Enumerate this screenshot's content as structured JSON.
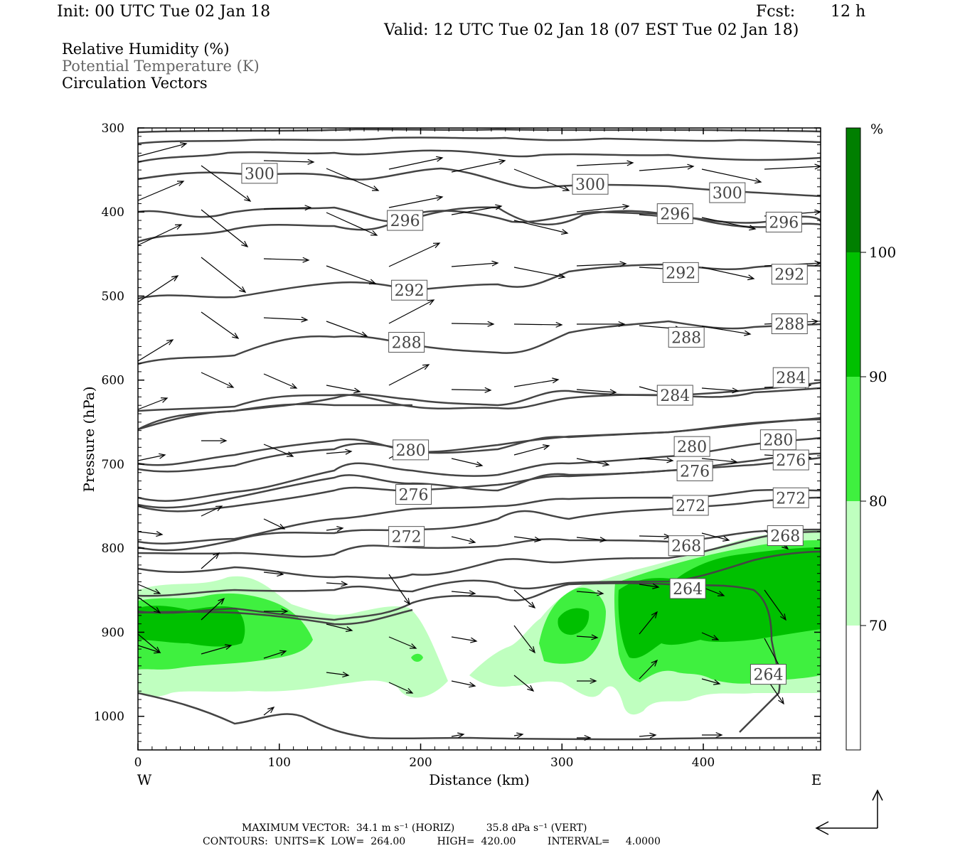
{
  "header": {
    "init": "Init: 00 UTC Tue 02 Jan 18",
    "fcst_label": "Fcst:",
    "fcst_value": "12 h",
    "valid": "Valid: 12 UTC Tue 02 Jan 18 (07 EST Tue 02 Jan 18)"
  },
  "fields": [
    {
      "text": "Relative Humidity (%)",
      "color": "#000000"
    },
    {
      "text": "Potential Temperature (K)",
      "color": "#666666"
    },
    {
      "text": "Circulation Vectors",
      "color": "#000000"
    }
  ],
  "footer": {
    "max_vector_line": "MAXIMUM VECTOR:  34.1 m s⁻¹ (HORIZ)          35.8 dPa s⁻¹ (VERT)",
    "contours_line": "CONTOURS:  UNITS=K  LOW=  264.00          HIGH=  420.00          INTERVAL=     4.0000"
  },
  "chart_data": {
    "type": "cross-section",
    "xlabel": "Distance (km)",
    "ylabel": "Pressure (hPa)",
    "xlim": [
      0,
      483
    ],
    "ylim": [
      1040,
      300
    ],
    "x_ticks": [
      0,
      100,
      200,
      300,
      400
    ],
    "y_ticks": [
      300,
      400,
      500,
      600,
      700,
      800,
      900,
      1000
    ],
    "x_end_labels": {
      "left": "W",
      "right": "E"
    },
    "colorbar": {
      "unit": "%",
      "levels": [
        70,
        80,
        90,
        100
      ],
      "colors": [
        "#ffffff",
        "#bfffbf",
        "#3ff03f",
        "#00c000",
        "#007f00"
      ]
    },
    "theta_contour_labels": [
      {
        "value": "300",
        "x": 86,
        "p": 354
      },
      {
        "value": "300",
        "x": 320,
        "p": 367
      },
      {
        "value": "300",
        "x": 417,
        "p": 377
      },
      {
        "value": "296",
        "x": 189,
        "p": 410
      },
      {
        "value": "296",
        "x": 380,
        "p": 402
      },
      {
        "value": "296",
        "x": 457,
        "p": 412
      },
      {
        "value": "292",
        "x": 192,
        "p": 493
      },
      {
        "value": "292",
        "x": 384,
        "p": 472
      },
      {
        "value": "292",
        "x": 461,
        "p": 474
      },
      {
        "value": "288",
        "x": 190,
        "p": 555
      },
      {
        "value": "288",
        "x": 388,
        "p": 549
      },
      {
        "value": "288",
        "x": 461,
        "p": 533
      },
      {
        "value": "284",
        "x": 380,
        "p": 618
      },
      {
        "value": "284",
        "x": 462,
        "p": 597
      },
      {
        "value": "280",
        "x": 193,
        "p": 683
      },
      {
        "value": "280",
        "x": 392,
        "p": 679
      },
      {
        "value": "280",
        "x": 453,
        "p": 671
      },
      {
        "value": "276",
        "x": 195,
        "p": 736
      },
      {
        "value": "276",
        "x": 394,
        "p": 708
      },
      {
        "value": "276",
        "x": 462,
        "p": 695
      },
      {
        "value": "272",
        "x": 190,
        "p": 786
      },
      {
        "value": "272",
        "x": 391,
        "p": 749
      },
      {
        "value": "272",
        "x": 462,
        "p": 740
      },
      {
        "value": "268",
        "x": 388,
        "p": 797
      },
      {
        "value": "268",
        "x": 458,
        "p": 785
      },
      {
        "value": "264",
        "x": 389,
        "p": 848
      },
      {
        "value": "264",
        "x": 446,
        "p": 950
      }
    ],
    "max_vector": {
      "horizontal": "34.1 m s-1",
      "vertical": "35.8 dPa s-1"
    },
    "contour_info": {
      "units": "K",
      "low": 264.0,
      "high": 420.0,
      "interval": 4.0
    }
  }
}
